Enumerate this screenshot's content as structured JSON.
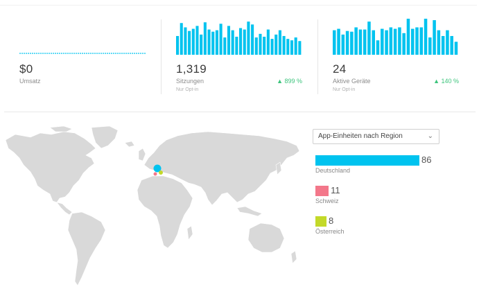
{
  "metrics": [
    {
      "value": "$0",
      "label": "Umsatz",
      "sub": "",
      "change": ""
    },
    {
      "value": "1,319",
      "label": "Sitzungen",
      "sub": "Nur Opt-in",
      "change": "▲ 899 %",
      "spark": [
        26,
        44,
        38,
        33,
        36,
        40,
        28,
        45,
        35,
        32,
        34,
        43,
        24,
        40,
        34,
        25,
        37,
        35,
        46,
        42,
        24,
        29,
        25,
        35,
        22,
        28,
        34,
        26,
        22,
        20,
        24,
        19
      ]
    },
    {
      "value": "24",
      "label": "Aktive Geräte",
      "sub": "Nur Opt-in",
      "change": "▲ 140 %",
      "spark": [
        34,
        36,
        28,
        33,
        32,
        38,
        35,
        35,
        46,
        34,
        20,
        36,
        34,
        38,
        36,
        38,
        30,
        50,
        36,
        38,
        38,
        50,
        24,
        48,
        34,
        26,
        34,
        26,
        18
      ]
    }
  ],
  "colors": {
    "bar": "#00c3ef",
    "zero_line": "#00c3ef",
    "positive": "#3cc47c",
    "map_land": "#d9d9d9",
    "schweiz": "#f3778a",
    "oesterreich": "#c3d929"
  },
  "region_select": {
    "selected": "App-Einheiten nach Region",
    "icon": "chevron-down-icon"
  },
  "regions": [
    {
      "name": "Deutschland",
      "value": 86,
      "color": "#00c3ef"
    },
    {
      "name": "Schweiz",
      "value": 11,
      "color": "#f3778a"
    },
    {
      "name": "Österreich",
      "value": 8,
      "color": "#c3d929"
    }
  ]
}
